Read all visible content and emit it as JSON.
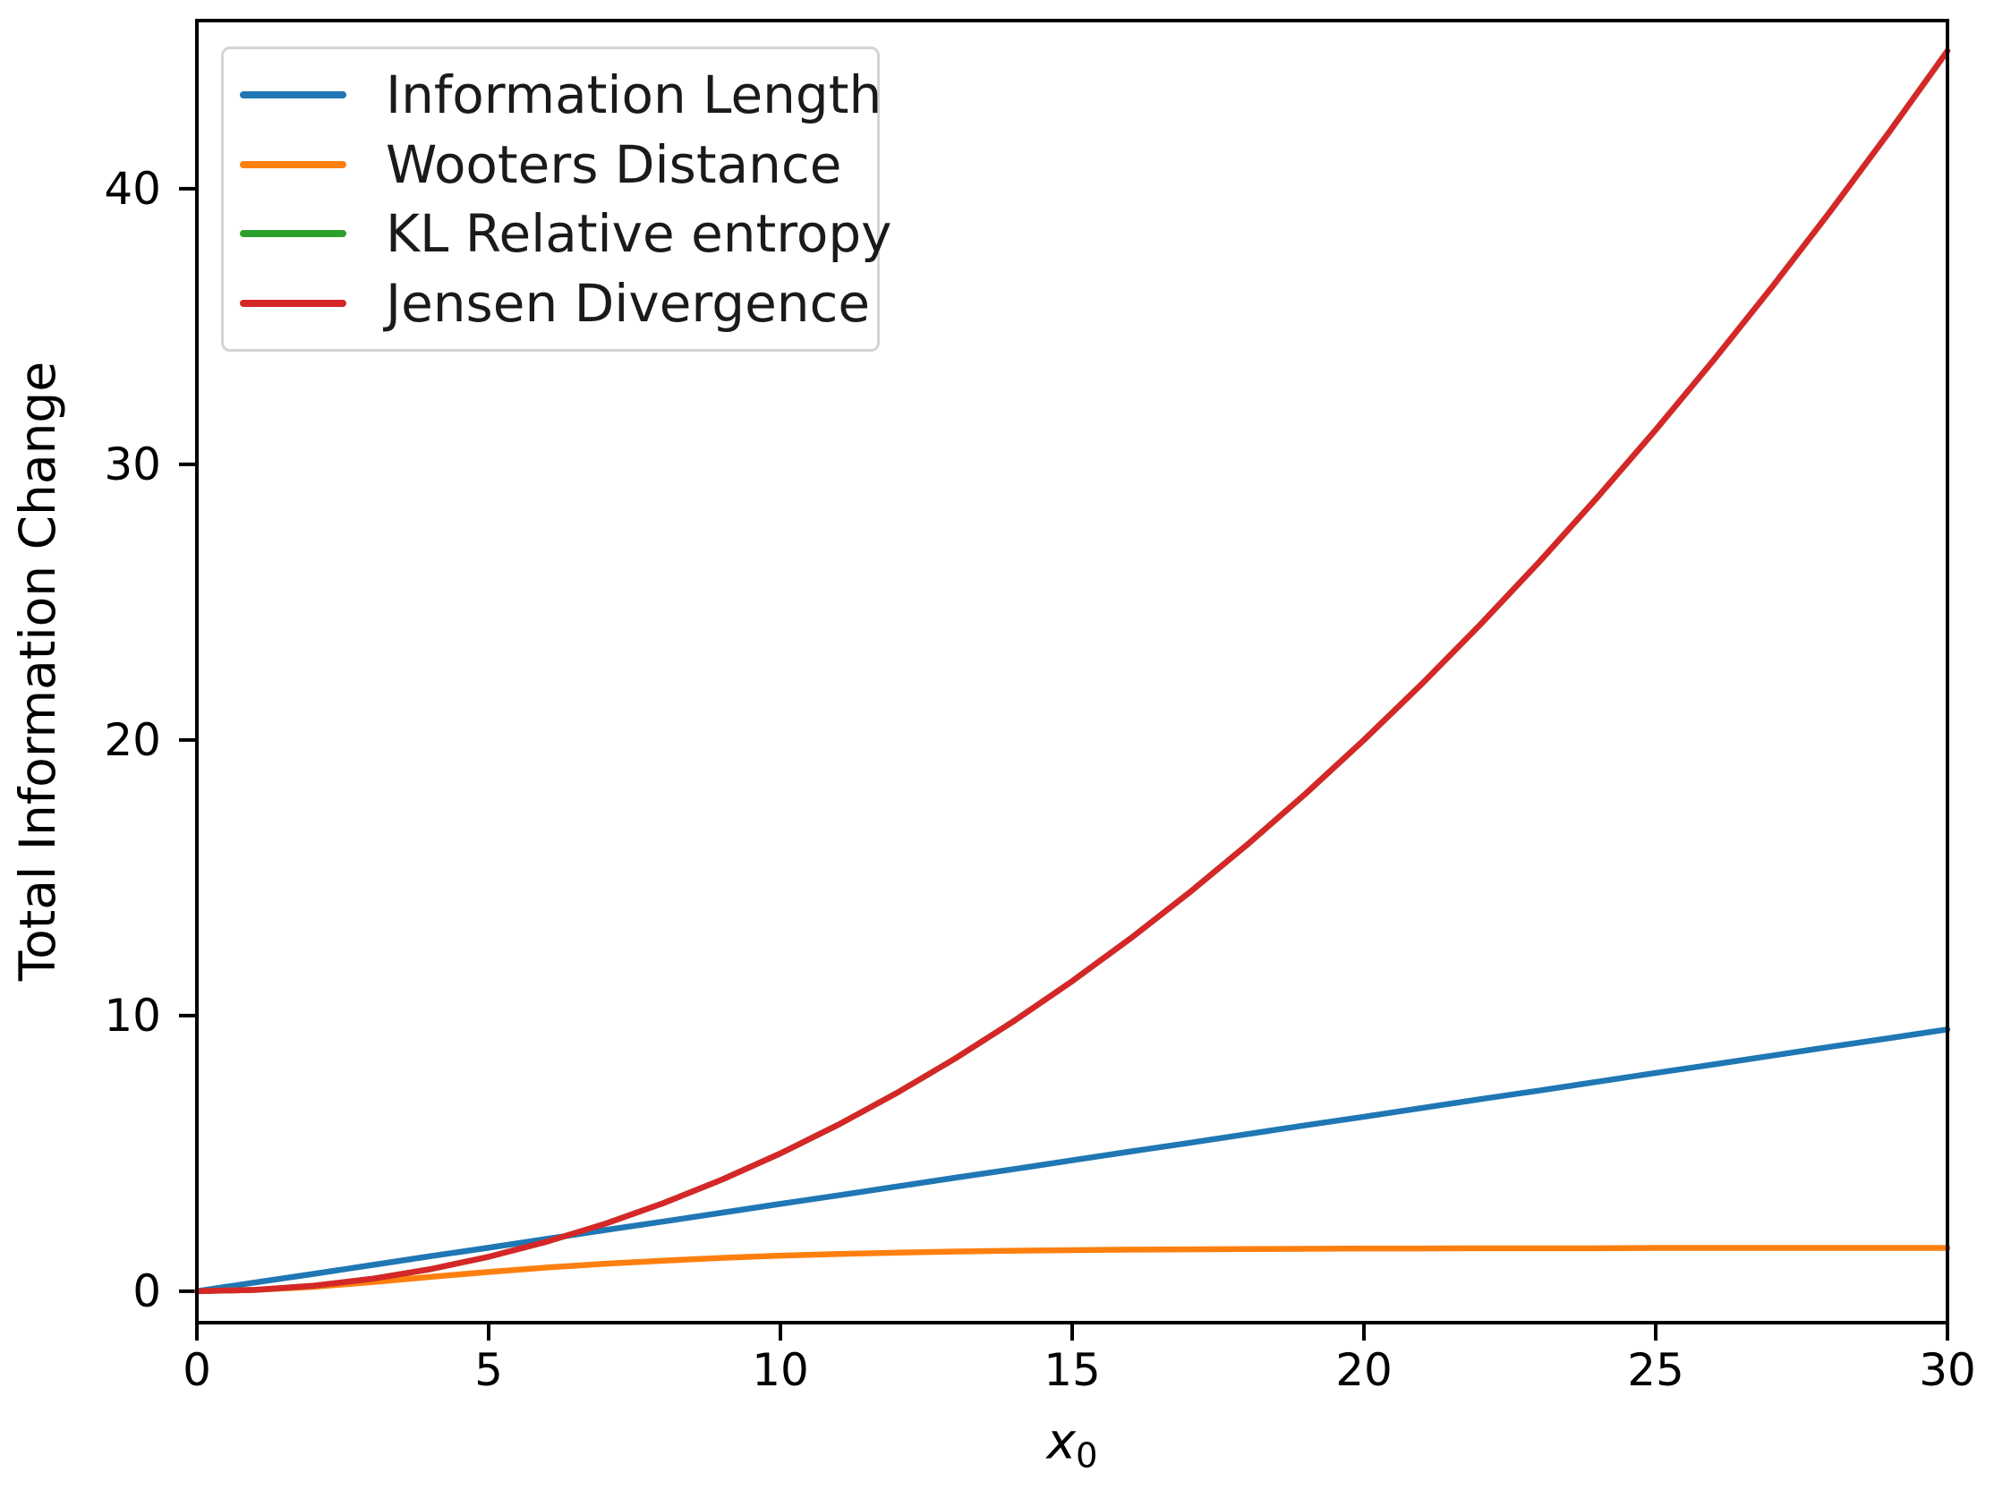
{
  "figure": {
    "background": "#ffffff",
    "spine_color": "#000000",
    "tick_color": "#000000"
  },
  "legend": {
    "position": "upper left",
    "border_color": "#d4d4d4",
    "entries": [
      {
        "label": "Information Length",
        "color": "#1f77b4"
      },
      {
        "label": "Wooters Distance",
        "color": "#ff7f0e"
      },
      {
        "label": "KL Relative entropy",
        "color": "#2ca02c"
      },
      {
        "label": "Jensen Divergence",
        "color": "#d62728"
      }
    ]
  },
  "chart_data": {
    "type": "line",
    "title": "",
    "xlabel": {
      "base": "x",
      "subscript": "0"
    },
    "ylabel": "Total Information Change",
    "xlim": [
      0,
      30
    ],
    "ylim": [
      -1.14,
      46.1
    ],
    "x_ticks": [
      0,
      5,
      10,
      15,
      20,
      25,
      30
    ],
    "y_ticks": [
      0,
      10,
      20,
      30,
      40
    ],
    "grid": false,
    "legend_position": "upper left",
    "note": "KL Relative entropy curve coincides with Jensen Divergence and is hidden beneath it",
    "x": [
      0,
      1,
      2,
      3,
      4,
      5,
      6,
      7,
      8,
      9,
      10,
      11,
      12,
      13,
      14,
      15,
      16,
      17,
      18,
      19,
      20,
      21,
      22,
      23,
      24,
      25,
      26,
      27,
      28,
      29,
      30
    ],
    "series": [
      {
        "name": "Information Length",
        "color": "#1f77b4",
        "values": [
          0,
          0.32,
          0.63,
          0.95,
          1.27,
          1.58,
          1.9,
          2.22,
          2.53,
          2.85,
          3.17,
          3.48,
          3.8,
          4.12,
          4.43,
          4.75,
          5.07,
          5.38,
          5.7,
          6.02,
          6.33,
          6.65,
          6.97,
          7.28,
          7.6,
          7.92,
          8.23,
          8.55,
          8.87,
          9.18,
          9.5
        ]
      },
      {
        "name": "Wooters Distance",
        "color": "#ff7f0e",
        "values": [
          0,
          0.05,
          0.16,
          0.33,
          0.52,
          0.7,
          0.86,
          1.0,
          1.11,
          1.21,
          1.29,
          1.35,
          1.4,
          1.44,
          1.47,
          1.49,
          1.51,
          1.52,
          1.53,
          1.54,
          1.55,
          1.55,
          1.56,
          1.56,
          1.56,
          1.57,
          1.57,
          1.57,
          1.57,
          1.57,
          1.57
        ]
      },
      {
        "name": "KL Relative entropy",
        "color": "#2ca02c",
        "values": [
          0,
          0.05,
          0.2,
          0.45,
          0.8,
          1.25,
          1.8,
          2.45,
          3.2,
          4.05,
          5,
          6.05,
          7.2,
          8.45,
          9.8,
          11.25,
          12.8,
          14.45,
          16.2,
          18.05,
          20,
          22.05,
          24.2,
          26.45,
          28.8,
          31.25,
          33.8,
          36.45,
          39.2,
          42.05,
          45
        ]
      },
      {
        "name": "Jensen Divergence",
        "color": "#d62728",
        "values": [
          0,
          0.05,
          0.2,
          0.45,
          0.8,
          1.25,
          1.8,
          2.45,
          3.2,
          4.05,
          5,
          6.05,
          7.2,
          8.45,
          9.8,
          11.25,
          12.8,
          14.45,
          16.2,
          18.05,
          20,
          22.05,
          24.2,
          26.45,
          28.8,
          31.25,
          33.8,
          36.45,
          39.2,
          42.05,
          45
        ]
      }
    ]
  }
}
